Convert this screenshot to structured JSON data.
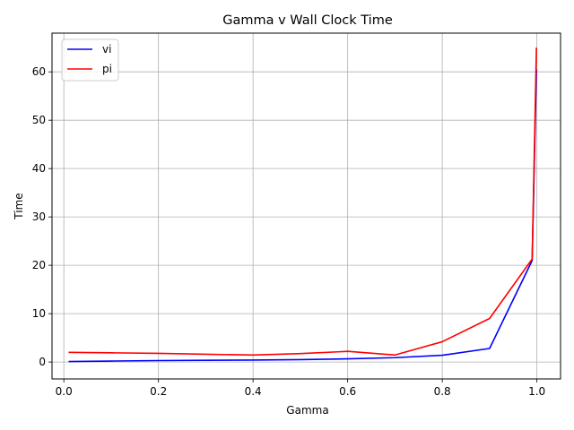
{
  "chart_data": {
    "type": "line",
    "title": "Gamma v Wall Clock Time",
    "xlabel": "Gamma",
    "ylabel": "Time",
    "xlim": [
      -0.025,
      1.05
    ],
    "ylim": [
      -3.5,
      68
    ],
    "xticks": [
      0.0,
      0.2,
      0.4,
      0.6,
      0.8,
      1.0
    ],
    "xtick_labels": [
      "0.0",
      "0.2",
      "0.4",
      "0.6",
      "0.8",
      "1.0"
    ],
    "yticks": [
      0,
      10,
      20,
      30,
      40,
      50,
      60
    ],
    "ytick_labels": [
      "0",
      "10",
      "20",
      "30",
      "40",
      "50",
      "60"
    ],
    "grid": true,
    "legend_position": "top-left",
    "x": [
      0.01,
      0.1,
      0.2,
      0.3,
      0.4,
      0.5,
      0.6,
      0.7,
      0.8,
      0.9,
      0.99,
      0.999
    ],
    "series": [
      {
        "name": "vi",
        "color": "#0000ff",
        "values": [
          0.1,
          0.2,
          0.3,
          0.35,
          0.4,
          0.5,
          0.65,
          0.9,
          1.4,
          2.8,
          21.0,
          60.5
        ]
      },
      {
        "name": "pi",
        "color": "#ff0000",
        "values": [
          2.0,
          1.9,
          1.8,
          1.6,
          1.45,
          1.75,
          2.2,
          1.45,
          4.2,
          9.0,
          21.3,
          65.0
        ]
      }
    ]
  }
}
